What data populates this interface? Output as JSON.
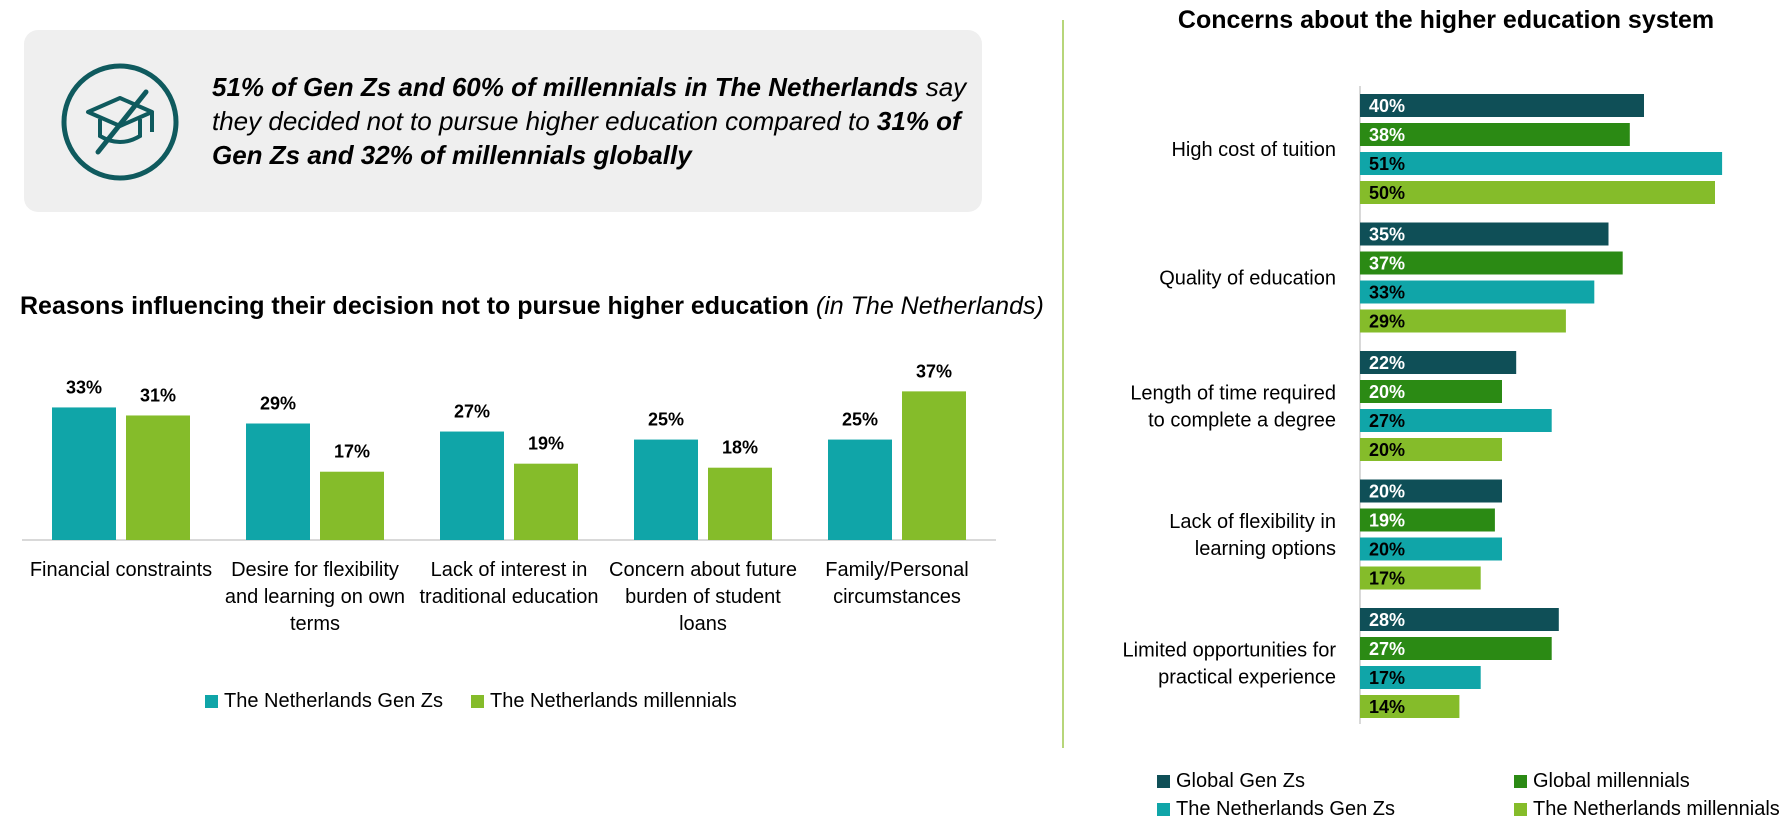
{
  "callout": {
    "icon": "graduation-cap-crossed-icon",
    "text_bold_1": "51% of Gen Zs and 60% of millennials in The Netherlands",
    "text_normal_1": " say they decided not to pursue higher education compared to ",
    "text_bold_2": "31% of Gen Zs and 32% of millennials globally"
  },
  "colors": {
    "global_genz": "#0f4f57",
    "global_millennials": "#2b8a14",
    "nl_genz": "#10a5a8",
    "nl_millennials": "#85bc2a",
    "divider": "#b7d67a",
    "callout_bg": "#efefef"
  },
  "left_chart_title": {
    "main": "Reasons influencing their decision not to pursue higher education ",
    "qualifier": "(in The Netherlands)"
  },
  "chart_data": [
    {
      "type": "bar",
      "title": "Reasons influencing their decision not to pursue higher education (in The Netherlands)",
      "categories": [
        [
          "Financial constraints"
        ],
        [
          "Desire for flexibility",
          "and learning on own",
          "terms"
        ],
        [
          "Lack of interest in",
          "traditional education"
        ],
        [
          "Concern about future",
          "burden of student",
          "loans"
        ],
        [
          "Family/Personal",
          "circumstances"
        ]
      ],
      "series": [
        {
          "name": "The Netherlands Gen Zs",
          "values": [
            33,
            29,
            27,
            25,
            25
          ],
          "labels": [
            "33%",
            "29%",
            "27%",
            "25%",
            "25%"
          ]
        },
        {
          "name": "The Netherlands millennials",
          "values": [
            31,
            17,
            19,
            18,
            37
          ],
          "labels": [
            "31%",
            "17%",
            "19%",
            "18%",
            "37%"
          ]
        }
      ],
      "ylim": [
        0,
        40
      ],
      "grid": false,
      "legend": "bottom"
    },
    {
      "type": "bar",
      "orientation": "horizontal",
      "title": "Concerns about the higher education system",
      "categories": [
        [
          "High cost of tuition"
        ],
        [
          "Quality of education"
        ],
        [
          "Length of time required",
          "to complete a degree"
        ],
        [
          "Lack of flexibility in",
          "learning options"
        ],
        [
          "Limited opportunities for",
          "practical experience"
        ]
      ],
      "series": [
        {
          "name": "Global Gen Zs",
          "values": [
            40,
            35,
            22,
            20,
            28
          ],
          "labels": [
            "40%",
            "35%",
            "22%",
            "20%",
            "28%"
          ]
        },
        {
          "name": "Global millennials",
          "values": [
            38,
            37,
            20,
            19,
            27
          ],
          "labels": [
            "38%",
            "37%",
            "20%",
            "19%",
            "27%"
          ]
        },
        {
          "name": "The Netherlands Gen Zs",
          "values": [
            51,
            33,
            27,
            20,
            17
          ],
          "labels": [
            "51%",
            "33%",
            "27%",
            "20%",
            "17%"
          ]
        },
        {
          "name": "The Netherlands millennials",
          "values": [
            50,
            29,
            20,
            17,
            14
          ],
          "labels": [
            "50%",
            "29%",
            "20%",
            "17%",
            "14%"
          ]
        }
      ],
      "xlim": [
        0,
        55
      ],
      "grid": false,
      "legend": "bottom"
    }
  ]
}
